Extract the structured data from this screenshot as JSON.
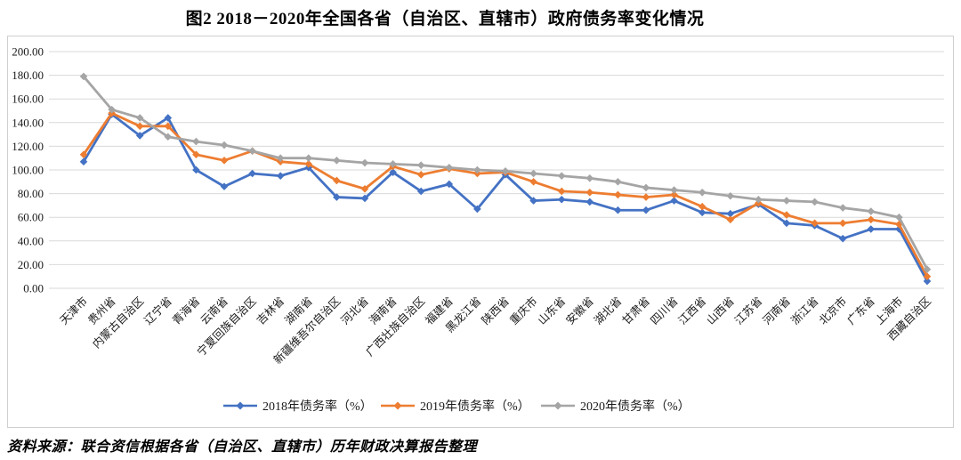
{
  "title": "图2  2018－2020年全国各省（自治区、直辖市）政府债务率变化情况",
  "source_note": "资料来源：联合资信根据各省（自治区、直辖市）历年财政决算报告整理",
  "colors": {
    "series_2018": "#4472C4",
    "series_2019": "#ED7D31",
    "series_2020": "#A5A5A5",
    "gridline": "#D9D9D9",
    "chart_border": "#CFCFCF",
    "text": "#1a1a1a"
  },
  "y_axis": {
    "max": 200,
    "min": 0,
    "step": 20,
    "tick_labels": [
      "200.00",
      "180.00",
      "160.00",
      "140.00",
      "120.00",
      "100.00",
      "80.00",
      "60.00",
      "40.00",
      "20.00",
      "0.00"
    ]
  },
  "chart_data": {
    "type": "line",
    "title": "图2  2018－2020年全国各省（自治区、直辖市）政府债务率变化情况",
    "xlabel": "",
    "ylabel": "",
    "ylim": [
      0,
      200
    ],
    "ytick_step": 20,
    "grid": true,
    "marker": "diamond",
    "legend_position": "bottom",
    "categories": [
      "天津市",
      "贵州省",
      "内蒙古自治区",
      "辽宁省",
      "青海省",
      "云南省",
      "宁夏回族自治区",
      "吉林省",
      "湖南省",
      "新疆维吾尔自治区",
      "河北省",
      "海南省",
      "广西壮族自治区",
      "福建省",
      "黑龙江省",
      "陕西省",
      "重庆市",
      "山东省",
      "安徽省",
      "湖北省",
      "甘肃省",
      "四川省",
      "江西省",
      "山西省",
      "江苏省",
      "河南省",
      "浙江省",
      "北京市",
      "广东省",
      "上海市",
      "西藏自治区"
    ],
    "series": [
      {
        "name": "2018年债务率（%）",
        "color": "#4472C4",
        "values": [
          107,
          147,
          129,
          144,
          100,
          86,
          97,
          95,
          102,
          77,
          76,
          98,
          82,
          88,
          67,
          96,
          74,
          75,
          73,
          66,
          66,
          74,
          64,
          63,
          71,
          55,
          53,
          42,
          50,
          50,
          6
        ]
      },
      {
        "name": "2019年债务率（%）",
        "color": "#ED7D31",
        "values": [
          113,
          148,
          137,
          137,
          113,
          108,
          116,
          107,
          105,
          91,
          84,
          103,
          96,
          101,
          97,
          98,
          90,
          82,
          81,
          79,
          77,
          79,
          69,
          58,
          72,
          62,
          55,
          55,
          58,
          54,
          10
        ]
      },
      {
        "name": "2020年债务率（%）",
        "color": "#A5A5A5",
        "values": [
          179,
          151,
          144,
          128,
          124,
          121,
          116,
          110,
          110,
          108,
          106,
          105,
          104,
          102,
          100,
          99,
          97,
          95,
          93,
          90,
          85,
          83,
          81,
          78,
          75,
          74,
          73,
          68,
          65,
          60,
          16
        ]
      }
    ]
  }
}
